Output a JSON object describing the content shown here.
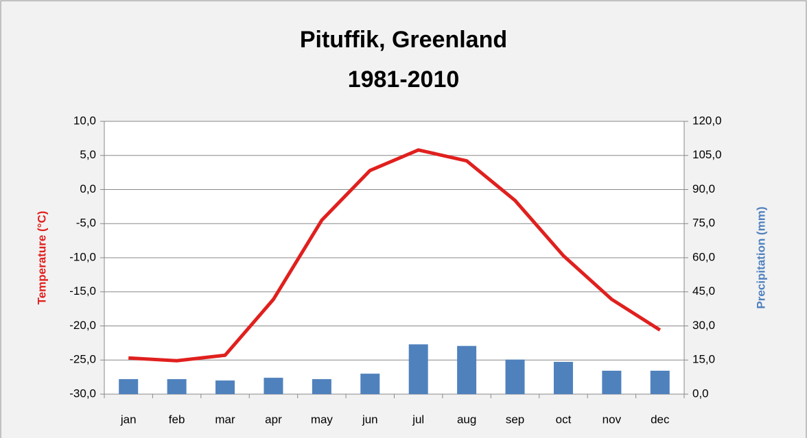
{
  "chart_data": {
    "type": "bar_line",
    "title": [
      "Pituffik, Greenland",
      "1981-2010"
    ],
    "y_label": "Temperature (°C)",
    "y2_label": "Precipitation (mm)",
    "categories": [
      "jan",
      "feb",
      "mar",
      "apr",
      "may",
      "jun",
      "jul",
      "aug",
      "sep",
      "oct",
      "nov",
      "dec"
    ],
    "series": [
      {
        "name": "Precipitation (mm)",
        "type": "bar",
        "axis": "y2",
        "color": "#4f81bd",
        "values": [
          6.6,
          6.6,
          6.0,
          7.2,
          6.6,
          9.0,
          21.9,
          21.2,
          15.2,
          14.2,
          10.3,
          10.3
        ]
      },
      {
        "name": "Temperature (°C)",
        "type": "line",
        "axis": "y",
        "color": "#e0201e",
        "values": [
          -24.7,
          -25.1,
          -24.3,
          -16.1,
          -4.5,
          2.8,
          5.8,
          4.2,
          -1.6,
          -9.7,
          -16.1,
          -20.6
        ]
      }
    ],
    "ylim": [
      -30,
      10
    ],
    "yticks": [
      {
        "value": -30,
        "label": "-30,0"
      },
      {
        "value": -25,
        "label": "-25,0"
      },
      {
        "value": -20,
        "label": "-20,0"
      },
      {
        "value": -15,
        "label": "-15,0"
      },
      {
        "value": -10,
        "label": "-10,0"
      },
      {
        "value": -5,
        "label": "-5,0"
      },
      {
        "value": 0,
        "label": "0,0"
      },
      {
        "value": 5,
        "label": "5,0"
      },
      {
        "value": 10,
        "label": "10,0"
      }
    ],
    "y2lim": [
      0,
      120
    ],
    "y2ticks": [
      {
        "value": 0,
        "label": "0,0"
      },
      {
        "value": 15,
        "label": "15,0"
      },
      {
        "value": 30,
        "label": "30,0"
      },
      {
        "value": 45,
        "label": "45,0"
      },
      {
        "value": 60,
        "label": "60,0"
      },
      {
        "value": 75,
        "label": "75,0"
      },
      {
        "value": 90,
        "label": "90,0"
      },
      {
        "value": 105,
        "label": "105,0"
      },
      {
        "value": 120,
        "label": "120,0"
      }
    ],
    "grid": true,
    "y_label_color": "#e0201e",
    "y2_label_color": "#4f81bd"
  }
}
